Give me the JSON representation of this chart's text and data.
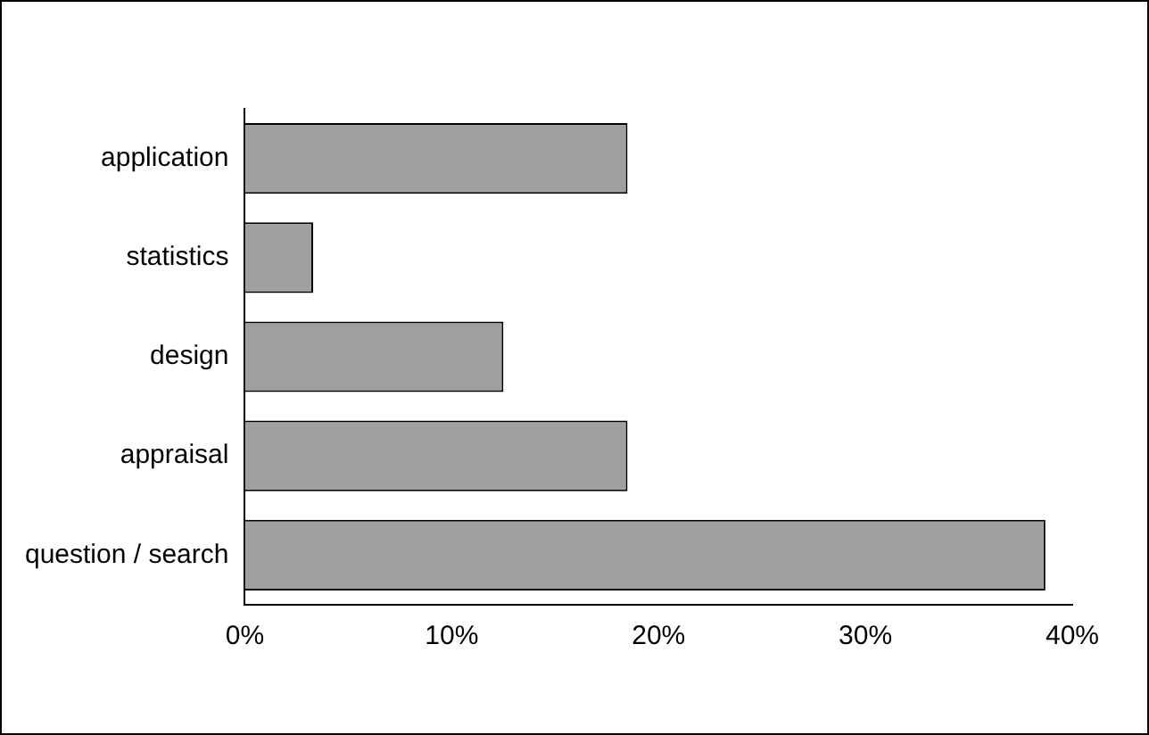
{
  "chart_data": {
    "type": "bar",
    "orientation": "horizontal",
    "categories": [
      "application",
      "statistics",
      "design",
      "appraisal",
      "question / search"
    ],
    "values": [
      18.5,
      3.3,
      12.5,
      18.5,
      38.7
    ],
    "color": "#a0a0a0",
    "xlim": [
      0,
      40
    ],
    "xticks": [
      {
        "value": 0,
        "label": "0%"
      },
      {
        "value": 10,
        "label": "10%"
      },
      {
        "value": 20,
        "label": "20%"
      },
      {
        "value": 30,
        "label": "30%"
      },
      {
        "value": 40,
        "label": "40%"
      }
    ],
    "grid": false,
    "legend": false
  }
}
